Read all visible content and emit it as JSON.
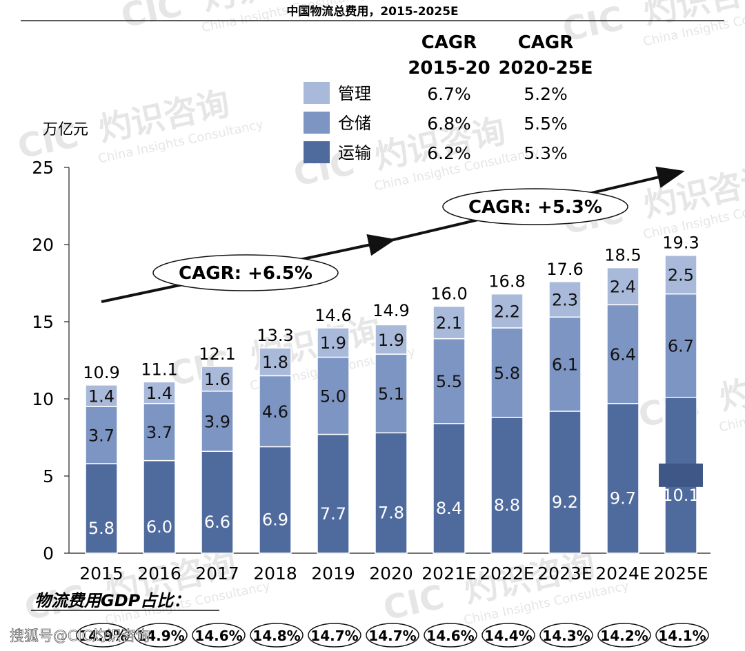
{
  "chart_data": {
    "type": "bar",
    "stacked": true,
    "title": "中国物流总费用，2015-2025E",
    "unit_label": "万亿元",
    "categories": [
      "2015",
      "2016",
      "2017",
      "2018",
      "2019",
      "2020",
      "2021E",
      "2022E",
      "2023E",
      "2024E",
      "2025E"
    ],
    "series": [
      {
        "name": "运输",
        "color": "#4f6b9e",
        "values": [
          5.8,
          6.0,
          6.6,
          6.9,
          7.7,
          7.8,
          8.4,
          8.8,
          9.2,
          9.7,
          10.1
        ]
      },
      {
        "name": "仓储",
        "color": "#7d95c3",
        "values": [
          3.7,
          3.7,
          3.9,
          4.6,
          5.0,
          5.1,
          5.5,
          5.8,
          6.1,
          6.4,
          6.7
        ]
      },
      {
        "name": "管理",
        "color": "#a9b9da",
        "values": [
          1.4,
          1.4,
          1.6,
          1.8,
          1.9,
          1.9,
          2.1,
          2.2,
          2.3,
          2.4,
          2.5
        ]
      }
    ],
    "totals": [
      10.9,
      11.1,
      12.1,
      13.3,
      14.6,
      14.9,
      16.0,
      16.8,
      17.6,
      18.5,
      19.3
    ],
    "ylim": [
      0,
      25
    ],
    "yticks": [
      0,
      5,
      10,
      15,
      20,
      25
    ],
    "cagr_table": {
      "headers": [
        [
          "CAGR",
          "2015-20"
        ],
        [
          "CAGR",
          "2020-25E"
        ]
      ],
      "rows": [
        {
          "name": "管理",
          "values": [
            "6.7%",
            "5.2%"
          ]
        },
        {
          "name": "仓储",
          "values": [
            "6.8%",
            "5.5%"
          ]
        },
        {
          "name": "运输",
          "values": [
            "6.2%",
            "5.3%"
          ]
        }
      ]
    },
    "annotations": {
      "cagr_left": "CAGR: +6.5%",
      "cagr_right": "CAGR: +5.3%"
    },
    "gdp_ratio_label": "物流费用GDP占比：",
    "gdp_ratio": [
      "14.9%",
      "14.9%",
      "14.6%",
      "14.8%",
      "14.7%",
      "14.7%",
      "14.6%",
      "14.4%",
      "14.3%",
      "14.2%",
      "14.1%"
    ]
  },
  "watermark": {
    "brand": "CIC",
    "cn": "灼识咨询",
    "en": "China Insights Consultancy"
  },
  "footer": {
    "source": "搜狐号@CIC灼识咨询"
  }
}
